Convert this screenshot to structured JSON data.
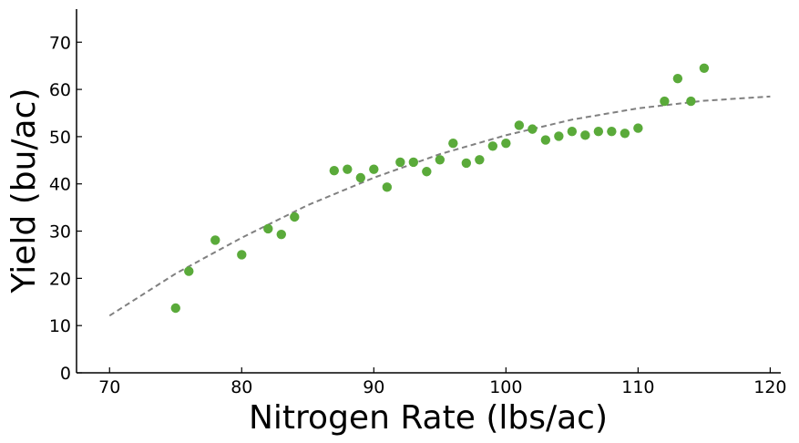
{
  "chart_data": {
    "type": "scatter",
    "title": "",
    "xlabel": "Nitrogen Rate (lbs/ac)",
    "ylabel": "Yield (bu/ac)",
    "xlim": [
      67.5,
      120.8
    ],
    "ylim": [
      0,
      77
    ],
    "x_ticks": [
      "70",
      "80",
      "90",
      "100",
      "110",
      "120"
    ],
    "y_ticks": [
      "0",
      "10",
      "20",
      "30",
      "40",
      "50",
      "60",
      "70"
    ],
    "grid": false,
    "legend": false,
    "colors": {
      "points": "#5aaa3a",
      "fit": "#808080"
    },
    "points": [
      {
        "x": 75,
        "y": 13.7
      },
      {
        "x": 76,
        "y": 21.5
      },
      {
        "x": 78,
        "y": 28.1
      },
      {
        "x": 80,
        "y": 25.0
      },
      {
        "x": 82,
        "y": 30.5
      },
      {
        "x": 83,
        "y": 29.3
      },
      {
        "x": 84,
        "y": 33.0
      },
      {
        "x": 87,
        "y": 42.8
      },
      {
        "x": 88,
        "y": 43.1
      },
      {
        "x": 89,
        "y": 41.3
      },
      {
        "x": 90,
        "y": 43.1
      },
      {
        "x": 91,
        "y": 39.3
      },
      {
        "x": 92,
        "y": 44.6
      },
      {
        "x": 93,
        "y": 44.6
      },
      {
        "x": 94,
        "y": 42.6
      },
      {
        "x": 95,
        "y": 45.1
      },
      {
        "x": 96,
        "y": 48.6
      },
      {
        "x": 97,
        "y": 44.4
      },
      {
        "x": 98,
        "y": 45.1
      },
      {
        "x": 99,
        "y": 48.0
      },
      {
        "x": 100,
        "y": 48.6
      },
      {
        "x": 101,
        "y": 52.4
      },
      {
        "x": 102,
        "y": 51.6
      },
      {
        "x": 103,
        "y": 49.3
      },
      {
        "x": 104,
        "y": 50.1
      },
      {
        "x": 105,
        "y": 51.1
      },
      {
        "x": 106,
        "y": 50.3
      },
      {
        "x": 107,
        "y": 51.1
      },
      {
        "x": 108,
        "y": 51.1
      },
      {
        "x": 109,
        "y": 50.7
      },
      {
        "x": 110,
        "y": 51.8
      },
      {
        "x": 112,
        "y": 57.5
      },
      {
        "x": 113,
        "y": 62.3
      },
      {
        "x": 114,
        "y": 57.5
      },
      {
        "x": 115,
        "y": 64.5
      }
    ],
    "fit_line": {
      "style": "dashed",
      "x": [
        70,
        75,
        80,
        85,
        90,
        95,
        100,
        105,
        110,
        115,
        120
      ],
      "y": [
        12.1,
        21.0,
        28.6,
        35.5,
        41.3,
        46.3,
        50.3,
        53.6,
        56.0,
        57.6,
        58.5
      ]
    }
  }
}
